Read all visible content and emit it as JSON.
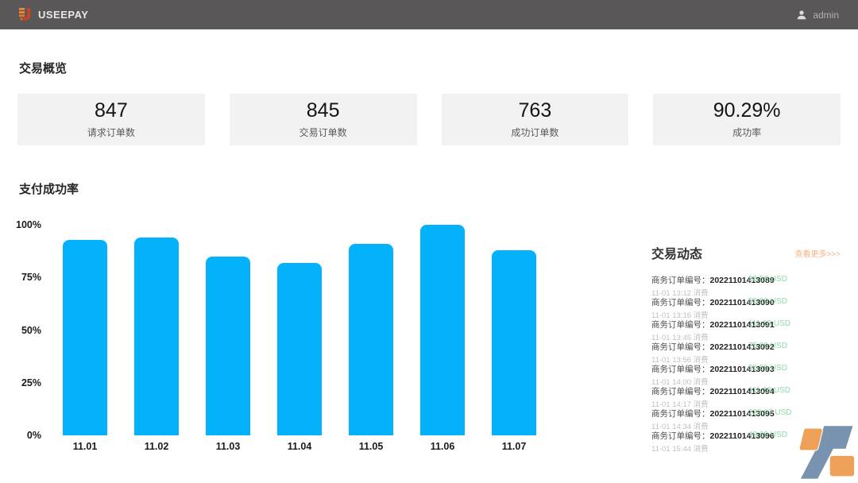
{
  "header": {
    "brand": "USEEPAY",
    "user": "admin"
  },
  "overview": {
    "title": "交易概览",
    "cards": [
      {
        "value": "847",
        "label": "请求订单数"
      },
      {
        "value": "845",
        "label": "交易订单数"
      },
      {
        "value": "763",
        "label": "成功订单数"
      },
      {
        "value": "90.29%",
        "label": "成功率"
      }
    ]
  },
  "chart_section": {
    "title": "支付成功率"
  },
  "chart_data": {
    "type": "bar",
    "title": "支付成功率",
    "categories": [
      "11.01",
      "11.02",
      "11.03",
      "11.04",
      "11.05",
      "11.06",
      "11.07"
    ],
    "values": [
      93,
      94,
      85,
      82,
      91,
      100,
      88
    ],
    "xlabel": "",
    "ylabel": "",
    "ylim": [
      0,
      100
    ],
    "yticks": [
      {
        "label": "0%",
        "pct": 0
      },
      {
        "label": "25%",
        "pct": 25
      },
      {
        "label": "50%",
        "pct": 50
      },
      {
        "label": "75%",
        "pct": 75
      },
      {
        "label": "100%",
        "pct": 100
      }
    ],
    "grid": false,
    "legend": false,
    "bar_color": "#04b1fb"
  },
  "transactions": {
    "title": "交易动态",
    "more_label": "查看更多>>>",
    "order_prefix": "商务订单编号：",
    "items": [
      {
        "order_no": "20221101413089",
        "time": "11-01 13:12",
        "type": "消费",
        "amount": "88.58 USD"
      },
      {
        "order_no": "20221101413090",
        "time": "11-01 13:16",
        "type": "消费",
        "amount": "55.59 USD"
      },
      {
        "order_no": "20221101413091",
        "time": "11-01 13:45",
        "type": "消费",
        "amount": "111.18 USD"
      },
      {
        "order_no": "20221101413092",
        "time": "11-01 13:56",
        "type": "消费",
        "amount": "75.99 USD"
      },
      {
        "order_no": "20221101413093",
        "time": "11-01 14:00",
        "type": "消费",
        "amount": "55.59 USD"
      },
      {
        "order_no": "20221101413094",
        "time": "11-01 14:17",
        "type": "消费",
        "amount": "111.18 USD"
      },
      {
        "order_no": "20221101413095",
        "time": "11-01 14:34",
        "type": "消费",
        "amount": "229.97 USD"
      },
      {
        "order_no": "20221101413096",
        "time": "11-01 15:44",
        "type": "消费",
        "amount": "49.99 USD"
      }
    ]
  },
  "colors": {
    "header_bg": "#595757",
    "bar_blue": "#04b1fb",
    "card_bg": "#f2f2f2",
    "amount_green": "#8bd9a5",
    "link_orange": "#f9b285",
    "logo_orange": "#ef9a4d",
    "logo_blue": "#6d8ba9"
  }
}
